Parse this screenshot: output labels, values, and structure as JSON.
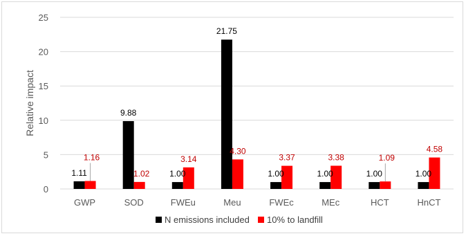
{
  "chart_data": {
    "type": "bar",
    "categories": [
      "GWP",
      "SOD",
      "FWEu",
      "Meu",
      "FWEc",
      "MEc",
      "HCT",
      "HnCT"
    ],
    "series": [
      {
        "name": "N emissions included",
        "color": "#000000",
        "values": [
          1.11,
          9.88,
          1.0,
          21.75,
          1.0,
          1.0,
          1.0,
          1.0
        ],
        "labels": [
          "1.11",
          "9.88",
          "1.00",
          "21.75",
          "1.00",
          "1.00",
          "1.00",
          "1.00"
        ]
      },
      {
        "name": "10% to landfill",
        "color": "#ff0000",
        "values": [
          1.16,
          1.02,
          3.14,
          4.3,
          3.37,
          3.38,
          1.09,
          4.58
        ],
        "labels": [
          "1.16",
          "1.02",
          "3.14",
          "4.30",
          "3.37",
          "3.38",
          "1.09",
          "4.58"
        ]
      }
    ],
    "ylabel": "Relative impact",
    "xlabel": "",
    "ylim": [
      0,
      25
    ],
    "yticks": [
      "0",
      "5",
      "10",
      "15",
      "20",
      "25"
    ],
    "grid": true,
    "legend_position": "bottom",
    "label_colors": {
      "N emissions included": "#000000",
      "10% to landfill": "#c00000"
    }
  }
}
